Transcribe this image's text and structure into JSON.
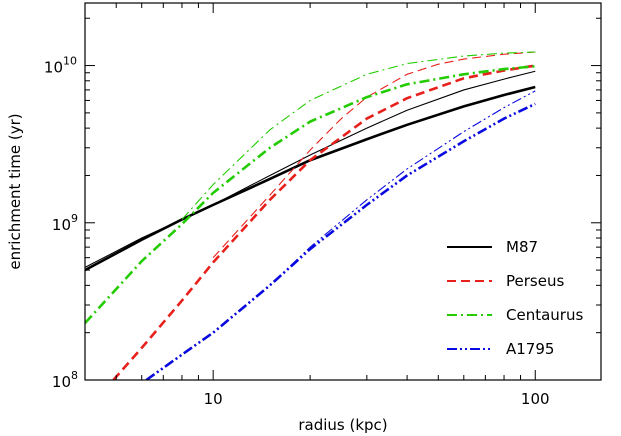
{
  "chart_data": {
    "type": "line",
    "xlabel": "radius (kpc)",
    "ylabel": "enrichment time (yr)",
    "xscale": "log",
    "yscale": "log",
    "xlim": [
      4,
      160
    ],
    "ylim": [
      100000000.0,
      25000000000.0
    ],
    "x_ticks": [
      {
        "value": 10,
        "label": "10"
      },
      {
        "value": 100,
        "label": "100"
      }
    ],
    "y_ticks": [
      {
        "value": 100000000.0,
        "base": "10",
        "exp": "8"
      },
      {
        "value": 1000000000.0,
        "base": "10",
        "exp": "9"
      },
      {
        "value": 10000000000.0,
        "base": "10",
        "exp": "10"
      }
    ],
    "grid": false,
    "legend_position": "bottom-right",
    "legend": [
      {
        "label": "M87",
        "color": "#000000",
        "dash": "solid"
      },
      {
        "label": "Perseus",
        "color": "#e8201c",
        "dash": "dashed"
      },
      {
        "label": "Centaurus",
        "color": "#22cc00",
        "dash": "dash-dot"
      },
      {
        "label": "A1795",
        "color": "#0a0ae0",
        "dash": "dash-dot-dot"
      }
    ],
    "series": [
      {
        "name": "M87",
        "variant": "thick",
        "color": "#000000",
        "dash": "solid",
        "x": [
          4,
          6,
          8,
          10,
          15,
          20,
          30,
          40,
          60,
          80,
          100
        ],
        "y": [
          500000000.0,
          780000000.0,
          1050000000.0,
          1300000000.0,
          1900000000.0,
          2500000000.0,
          3400000000.0,
          4200000000.0,
          5500000000.0,
          6500000000.0,
          7300000000.0
        ]
      },
      {
        "name": "M87",
        "variant": "thin",
        "color": "#000000",
        "dash": "solid",
        "x": [
          4,
          6,
          8,
          10,
          15,
          20,
          30,
          40,
          60,
          80,
          100
        ],
        "y": [
          520000000.0,
          800000000.0,
          1050000000.0,
          1300000000.0,
          2000000000.0,
          2700000000.0,
          4000000000.0,
          5200000000.0,
          7000000000.0,
          8200000000.0,
          9200000000.0
        ]
      },
      {
        "name": "Perseus",
        "variant": "thick",
        "color": "#e8201c",
        "dash": "dashed",
        "x": [
          4.9,
          6,
          8,
          10,
          15,
          20,
          30,
          40,
          60,
          80,
          100
        ],
        "y": [
          100000000.0,
          160000000.0,
          320000000.0,
          560000000.0,
          1400000000.0,
          2500000000.0,
          4600000000.0,
          6200000000.0,
          8300000000.0,
          9300000000.0,
          10000000000.0
        ]
      },
      {
        "name": "Perseus",
        "variant": "thin",
        "color": "#e8201c",
        "dash": "dashed",
        "x": [
          10,
          15,
          20,
          25,
          30,
          40,
          50,
          60,
          80,
          100
        ],
        "y": [
          600000000.0,
          1500000000.0,
          2900000000.0,
          4600000000.0,
          6300000000.0,
          8800000000.0,
          10200000000.0,
          11000000000.0,
          11800000000.0,
          12200000000.0
        ]
      },
      {
        "name": "Centaurus",
        "variant": "thick",
        "color": "#22cc00",
        "dash": "dash-dot",
        "x": [
          4,
          6,
          8,
          10,
          15,
          20,
          30,
          40,
          60,
          80,
          100
        ],
        "y": [
          230000000.0,
          570000000.0,
          980000000.0,
          1550000000.0,
          3000000000.0,
          4400000000.0,
          6300000000.0,
          7600000000.0,
          8800000000.0,
          9500000000.0,
          9900000000.0
        ]
      },
      {
        "name": "Centaurus",
        "variant": "thin",
        "color": "#22cc00",
        "dash": "dash-dot",
        "x": [
          8,
          10,
          15,
          20,
          30,
          40,
          60,
          80,
          100
        ],
        "y": [
          1050000000.0,
          1750000000.0,
          3900000000.0,
          6000000000.0,
          8800000000.0,
          10300000000.0,
          11500000000.0,
          12000000000.0,
          12200000000.0
        ]
      },
      {
        "name": "A1795",
        "variant": "thick",
        "color": "#0a0ae0",
        "dash": "dash-dot-dot",
        "x": [
          6.2,
          8,
          10,
          15,
          20,
          30,
          40,
          60,
          80,
          100
        ],
        "y": [
          100000000.0,
          145000000.0,
          200000000.0,
          400000000.0,
          680000000.0,
          1300000000.0,
          2000000000.0,
          3300000000.0,
          4600000000.0,
          5700000000.0
        ]
      },
      {
        "name": "A1795",
        "variant": "thin",
        "color": "#0a0ae0",
        "dash": "dash-dot-dot",
        "x": [
          6.2,
          8,
          10,
          15,
          20,
          30,
          40,
          60,
          80,
          100
        ],
        "y": [
          100000000.0,
          145000000.0,
          200000000.0,
          400000000.0,
          700000000.0,
          1400000000.0,
          2200000000.0,
          3800000000.0,
          5400000000.0,
          6900000000.0
        ]
      }
    ]
  }
}
